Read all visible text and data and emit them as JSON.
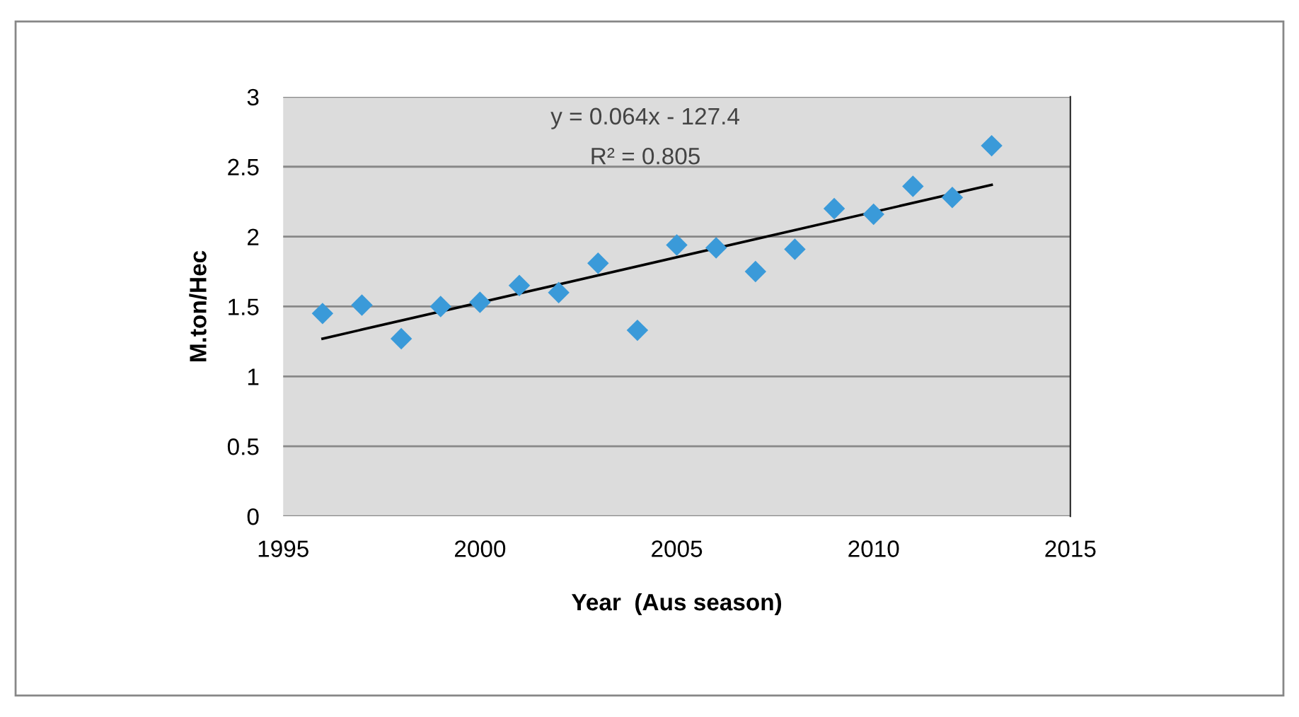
{
  "chart_data": {
    "type": "scatter",
    "xlabel": "Year  (Aus season)",
    "ylabel": "M.ton/Hec",
    "annotations": [
      "y = 0.064x - 127.4",
      "R² = 0.805"
    ],
    "series": [
      {
        "color": "#3a9ad9",
        "marker": "diamond",
        "x": [
          1996,
          1997,
          1998,
          1999,
          2000,
          2001,
          2002,
          2003,
          2004,
          2005,
          2006,
          2007,
          2008,
          2009,
          2010,
          2011,
          2012,
          2013
        ],
        "values": [
          1.45,
          1.51,
          1.27,
          1.5,
          1.53,
          1.65,
          1.6,
          1.81,
          1.33,
          1.94,
          1.92,
          1.75,
          1.91,
          2.2,
          2.16,
          2.36,
          2.28,
          2.65
        ]
      },
      {
        "type": "line",
        "color": "#000000",
        "line_style": "solid",
        "marker": "none",
        "x": [
          1996,
          2013
        ],
        "values": [
          1.27,
          2.37
        ]
      }
    ],
    "xlim": [
      1995,
      2015
    ],
    "xticks": [
      1995,
      2000,
      2005,
      2010,
      2015
    ],
    "ylim": [
      0,
      3
    ],
    "yticks": [
      0,
      0.5,
      1,
      1.5,
      2,
      2.5,
      3
    ],
    "grid": "y",
    "legend": false
  }
}
